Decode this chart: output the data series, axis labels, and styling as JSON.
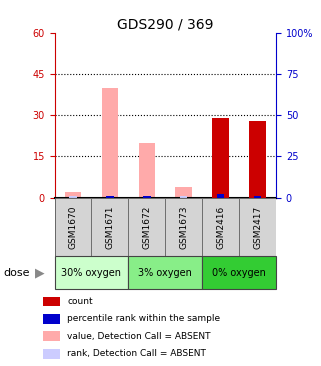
{
  "title": "GDS290 / 369",
  "samples": [
    "GSM1670",
    "GSM1671",
    "GSM1672",
    "GSM1673",
    "GSM2416",
    "GSM2417"
  ],
  "count_values": [
    0,
    0,
    0,
    0,
    29,
    28
  ],
  "percentile_rank_values": [
    0,
    1,
    1,
    0,
    2,
    1
  ],
  "value_absent_values": [
    2,
    40,
    20,
    4,
    0,
    0
  ],
  "rank_absent_values": [
    1,
    1,
    1,
    1,
    0,
    0
  ],
  "ylim_left": [
    0,
    60
  ],
  "ylim_right": [
    0,
    100
  ],
  "yticks_left": [
    0,
    15,
    30,
    45,
    60
  ],
  "yticks_right": [
    0,
    25,
    50,
    75,
    100
  ],
  "ytick_labels_left": [
    "0",
    "15",
    "30",
    "45",
    "60"
  ],
  "ytick_labels_right": [
    "0",
    "25",
    "50",
    "75",
    "100%"
  ],
  "left_axis_color": "#cc0000",
  "right_axis_color": "#0000cc",
  "count_color": "#cc0000",
  "percentile_color": "#0000cc",
  "value_absent_color": "#ffaaaa",
  "rank_absent_color": "#ccccff",
  "bg_color": "#ffffff",
  "group_data": [
    {
      "start": 0,
      "end": 1,
      "color": "#ccffcc",
      "label": "30% oxygen"
    },
    {
      "start": 2,
      "end": 3,
      "color": "#88ee88",
      "label": "3% oxygen"
    },
    {
      "start": 4,
      "end": 5,
      "color": "#33cc33",
      "label": "0% oxygen"
    }
  ],
  "legend_items": [
    {
      "label": "count",
      "color": "#cc0000"
    },
    {
      "label": "percentile rank within the sample",
      "color": "#0000cc"
    },
    {
      "label": "value, Detection Call = ABSENT",
      "color": "#ffaaaa"
    },
    {
      "label": "rank, Detection Call = ABSENT",
      "color": "#ccccff"
    }
  ]
}
